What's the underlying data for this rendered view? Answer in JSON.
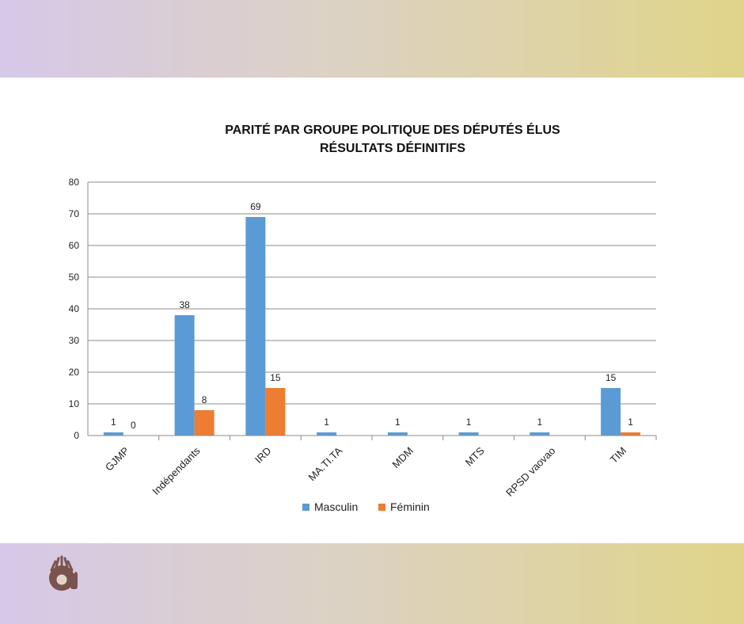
{
  "colors": {
    "masculin": "#5b9bd5",
    "feminin": "#ed7d31",
    "grid": "#8c8c8c",
    "logo": "#7a5350"
  },
  "logo": {
    "icon": "radio-logo-icon"
  },
  "chart_data": {
    "type": "bar",
    "title": [
      "PARITÉ PAR GROUPE POLITIQUE DES DÉPUTÉS ÉLUS",
      "RÉSULTATS DÉFINITIFS"
    ],
    "xlabel": "",
    "ylabel": "",
    "ylim": [
      0,
      80
    ],
    "yticks": [
      0,
      10,
      20,
      30,
      40,
      50,
      60,
      70,
      80
    ],
    "grid": true,
    "legend_position": "bottom",
    "categories": [
      "GJMP",
      "Indépendants",
      "IRD",
      "MA.TI.TA",
      "MDM",
      "MTS",
      "RPSD vaovao",
      "TIM"
    ],
    "series": [
      {
        "name": "Masculin",
        "values": [
          1,
          38,
          69,
          1,
          1,
          1,
          1,
          15
        ],
        "labels": [
          "1",
          "38",
          "69",
          "1",
          "1",
          "1",
          "1",
          "15"
        ]
      },
      {
        "name": "Féminin",
        "values": [
          0,
          8,
          15,
          null,
          null,
          null,
          null,
          1
        ],
        "labels": [
          "0",
          "8",
          "15",
          null,
          null,
          null,
          null,
          "1"
        ]
      }
    ]
  }
}
